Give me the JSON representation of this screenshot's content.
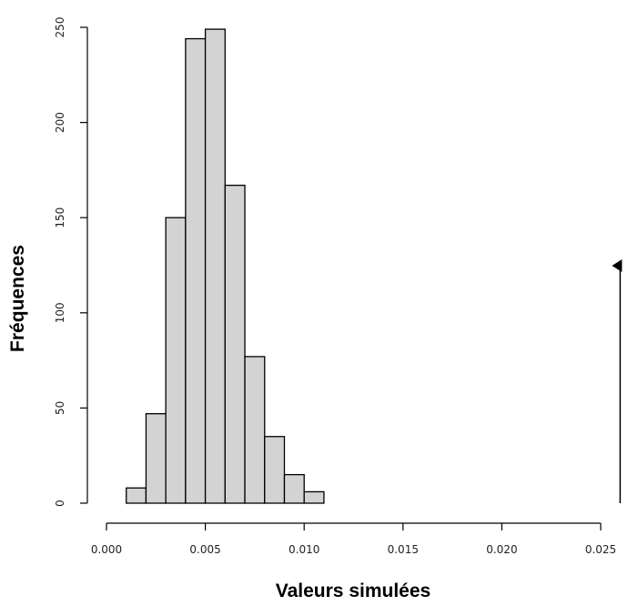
{
  "chart_data": {
    "type": "bar",
    "title": "",
    "xlabel": "Valeurs simulées",
    "ylabel": "Fréquences",
    "bin_width": 0.001,
    "bins": [
      {
        "x0": 0.001,
        "x1": 0.002,
        "count": 8
      },
      {
        "x0": 0.002,
        "x1": 0.003,
        "count": 47
      },
      {
        "x0": 0.003,
        "x1": 0.004,
        "count": 150
      },
      {
        "x0": 0.004,
        "x1": 0.005,
        "count": 244
      },
      {
        "x0": 0.005,
        "x1": 0.006,
        "count": 249
      },
      {
        "x0": 0.006,
        "x1": 0.007,
        "count": 167
      },
      {
        "x0": 0.007,
        "x1": 0.008,
        "count": 77
      },
      {
        "x0": 0.008,
        "x1": 0.009,
        "count": 35
      },
      {
        "x0": 0.009,
        "x1": 0.01,
        "count": 15
      },
      {
        "x0": 0.01,
        "x1": 0.011,
        "count": 6
      }
    ],
    "xlim": [
      0.0,
      0.025
    ],
    "ylim": [
      0,
      250
    ],
    "x_ticks": [
      {
        "value": 0.0,
        "label": "0.000"
      },
      {
        "value": 0.005,
        "label": "0.005"
      },
      {
        "value": 0.01,
        "label": "0.010"
      },
      {
        "value": 0.015,
        "label": "0.015"
      },
      {
        "value": 0.02,
        "label": "0.020"
      },
      {
        "value": 0.025,
        "label": "0.025"
      }
    ],
    "y_ticks": [
      {
        "value": 0,
        "label": "0"
      },
      {
        "value": 50,
        "label": "50"
      },
      {
        "value": 100,
        "label": "100"
      },
      {
        "value": 150,
        "label": "150"
      },
      {
        "value": 200,
        "label": "200"
      },
      {
        "value": 250,
        "label": "250"
      }
    ],
    "observed_marker": {
      "value": 0.0258
    },
    "grid": false,
    "colors": {
      "bar_fill": "#d3d3d3",
      "bar_stroke": "#000000",
      "axis": "#000000"
    }
  }
}
